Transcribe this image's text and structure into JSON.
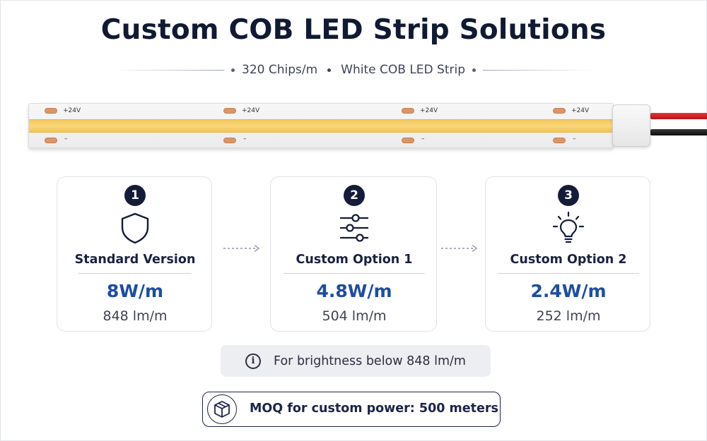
{
  "header": {
    "title": "Custom COB LED Strip Solutions",
    "spec_chips": "320 Chips/m",
    "spec_type": "White COB LED Strip"
  },
  "strip": {
    "pad_positive": "+24V",
    "pad_negative": "–",
    "led_color": "#f6cf69",
    "wire_colors": [
      "#d9232a",
      "#111111"
    ]
  },
  "options": [
    {
      "number": "1",
      "icon": "shield-icon",
      "label": "Standard Version",
      "power": "8W/m",
      "lumen": "848 lm/m"
    },
    {
      "number": "2",
      "icon": "sliders-icon",
      "label": "Custom Option 1",
      "power": "4.8W/m",
      "lumen": "504 lm/m"
    },
    {
      "number": "3",
      "icon": "lightbulb-icon",
      "label": "Custom Option 2",
      "power": "2.4W/m",
      "lumen": "252 lm/m"
    }
  ],
  "note": {
    "icon": "info-icon",
    "text": "For brightness below 848 lm/m"
  },
  "moq": {
    "icon": "box-icon",
    "text": "MOQ for custom power: 500 meters"
  },
  "colors": {
    "title": "#111a33",
    "accent_blue": "#1e4da3",
    "badge": "#141c3a"
  }
}
